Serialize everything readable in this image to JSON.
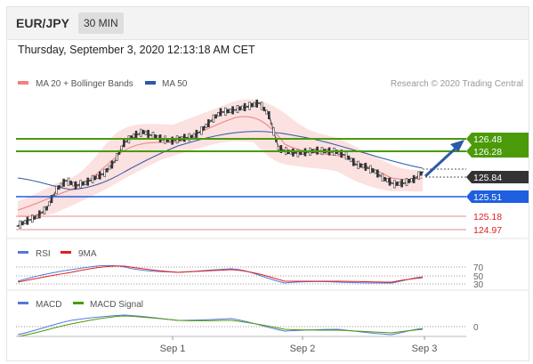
{
  "header": {
    "symbol": "EUR/JPY",
    "timeframe": "30 MIN"
  },
  "timestamp": "Thursday, September 3, 2020 12:13:18 AM CET",
  "legend": {
    "ma20_label": "MA 20 + Bollinger Bands",
    "ma50_label": "MA 50",
    "credit": "Research © 2020 Trading Central"
  },
  "rsi_legend": {
    "rsi_label": "RSI",
    "ma_label": "9MA"
  },
  "macd_legend": {
    "macd_label": "MACD",
    "signal_label": "MACD Signal"
  },
  "colors": {
    "accent_green": "#4a9a0a",
    "accent_blue": "#1f5fe0",
    "price_dark": "#333333",
    "support_red": "#e05555"
  },
  "price_levels": {
    "resistance_2": "126.48",
    "resistance_1": "126.28",
    "current": "125.84",
    "pivot": "125.51",
    "support_1": "125.18",
    "support_2": "124.97"
  },
  "chart_data": {
    "type": "candlestick",
    "y_range": [
      124.85,
      127.0
    ],
    "x_labels": [
      "Sep 1",
      "Sep 2",
      "Sep 3"
    ],
    "rsi_levels": [
      "70",
      "50",
      "30"
    ],
    "macd_level": "0",
    "close_series": [
      124.97,
      125.05,
      125.12,
      125.25,
      125.55,
      125.7,
      125.62,
      125.66,
      125.74,
      125.82,
      126.0,
      126.3,
      126.42,
      126.48,
      126.42,
      126.36,
      126.34,
      126.38,
      126.4,
      126.5,
      126.66,
      126.8,
      126.82,
      126.86,
      126.9,
      126.95,
      126.75,
      126.22,
      126.16,
      126.14,
      126.16,
      126.18,
      126.17,
      126.16,
      126.1,
      125.96,
      125.92,
      125.84,
      125.72,
      125.64,
      125.66,
      125.72,
      125.84
    ],
    "projection": {
      "from": 125.84,
      "to": 126.48
    }
  }
}
